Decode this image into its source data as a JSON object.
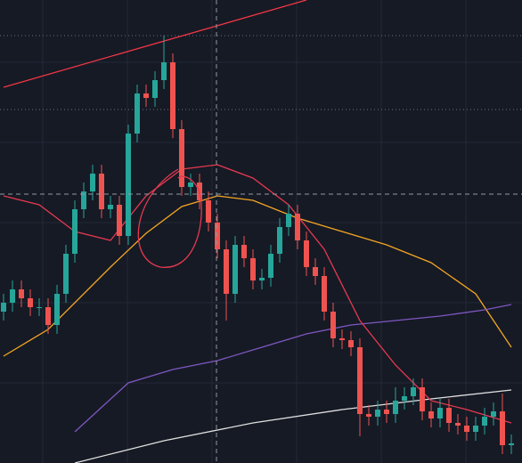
{
  "chart_data": {
    "type": "candlestick",
    "ylim": [
      0,
      520
    ],
    "up_color": "#26a69a",
    "down_color": "#ef5350",
    "open": [
      170,
      180,
      195,
      185,
      175,
      175,
      155,
      190,
      235,
      285,
      305,
      325,
      285,
      290,
      255,
      370,
      415,
      410,
      430,
      450,
      375,
      310,
      315,
      295,
      270,
      240,
      190,
      245,
      230,
      205,
      208,
      235,
      265,
      280,
      250,
      220,
      210,
      170,
      140,
      138,
      130,
      55,
      52,
      60,
      55,
      70,
      75,
      85,
      58,
      50,
      62,
      45,
      42,
      35,
      42,
      52,
      58,
      20
    ],
    "high": [
      190,
      205,
      205,
      195,
      185,
      185,
      200,
      245,
      295,
      315,
      335,
      335,
      300,
      300,
      380,
      425,
      425,
      440,
      480,
      460,
      385,
      325,
      325,
      305,
      280,
      250,
      255,
      255,
      240,
      218,
      245,
      275,
      290,
      290,
      260,
      230,
      220,
      180,
      150,
      148,
      140,
      65,
      70,
      70,
      85,
      85,
      95,
      95,
      68,
      72,
      72,
      55,
      52,
      52,
      62,
      68,
      78,
      32
    ],
    "low": [
      160,
      170,
      175,
      165,
      165,
      145,
      145,
      180,
      225,
      275,
      295,
      275,
      275,
      245,
      245,
      360,
      400,
      400,
      420,
      365,
      300,
      300,
      285,
      260,
      230,
      160,
      180,
      220,
      195,
      195,
      198,
      225,
      255,
      240,
      210,
      200,
      160,
      130,
      128,
      120,
      30,
      42,
      42,
      45,
      45,
      60,
      65,
      48,
      40,
      40,
      35,
      32,
      25,
      25,
      32,
      42,
      10,
      10
    ],
    "close": [
      180,
      195,
      185,
      175,
      175,
      155,
      190,
      235,
      285,
      305,
      325,
      285,
      290,
      255,
      370,
      415,
      410,
      430,
      450,
      375,
      310,
      315,
      295,
      270,
      240,
      190,
      245,
      230,
      205,
      208,
      235,
      265,
      280,
      250,
      220,
      210,
      170,
      140,
      138,
      130,
      55,
      52,
      60,
      55,
      70,
      75,
      85,
      58,
      50,
      62,
      45,
      42,
      35,
      42,
      52,
      58,
      20,
      22
    ],
    "lines": [
      {
        "color": "#f5a623",
        "x": [
          0,
          5,
          12,
          16,
          20,
          24,
          28,
          33,
          38,
          43,
          48,
          53,
          57
        ],
        "values": [
          120,
          150,
          220,
          258,
          288,
          300,
          295,
          275,
          260,
          245,
          225,
          190,
          130
        ]
      },
      {
        "color": "#7e57c2",
        "x": [
          8,
          14,
          19,
          24,
          29,
          34,
          39,
          44,
          49,
          54,
          57
        ],
        "values": [
          35,
          90,
          105,
          115,
          130,
          145,
          155,
          160,
          165,
          172,
          178
        ]
      },
      {
        "color": "#e0e0e0",
        "x": [
          8,
          18,
          28,
          38,
          48,
          57
        ],
        "values": [
          0,
          25,
          45,
          60,
          72,
          82
        ]
      },
      {
        "color": "#e53950",
        "x": [
          0,
          4,
          8,
          12,
          16,
          20,
          24,
          28,
          32,
          36,
          40,
          44,
          48,
          52,
          57
        ],
        "values": [
          300,
          290,
          260,
          250,
          300,
          330,
          335,
          320,
          290,
          240,
          160,
          110,
          70,
          60,
          45
        ]
      },
      {
        "color": "#f23645",
        "x": [
          0,
          34
        ],
        "values": [
          422,
          520
        ]
      }
    ],
    "hlines": [
      480,
      397
    ]
  }
}
